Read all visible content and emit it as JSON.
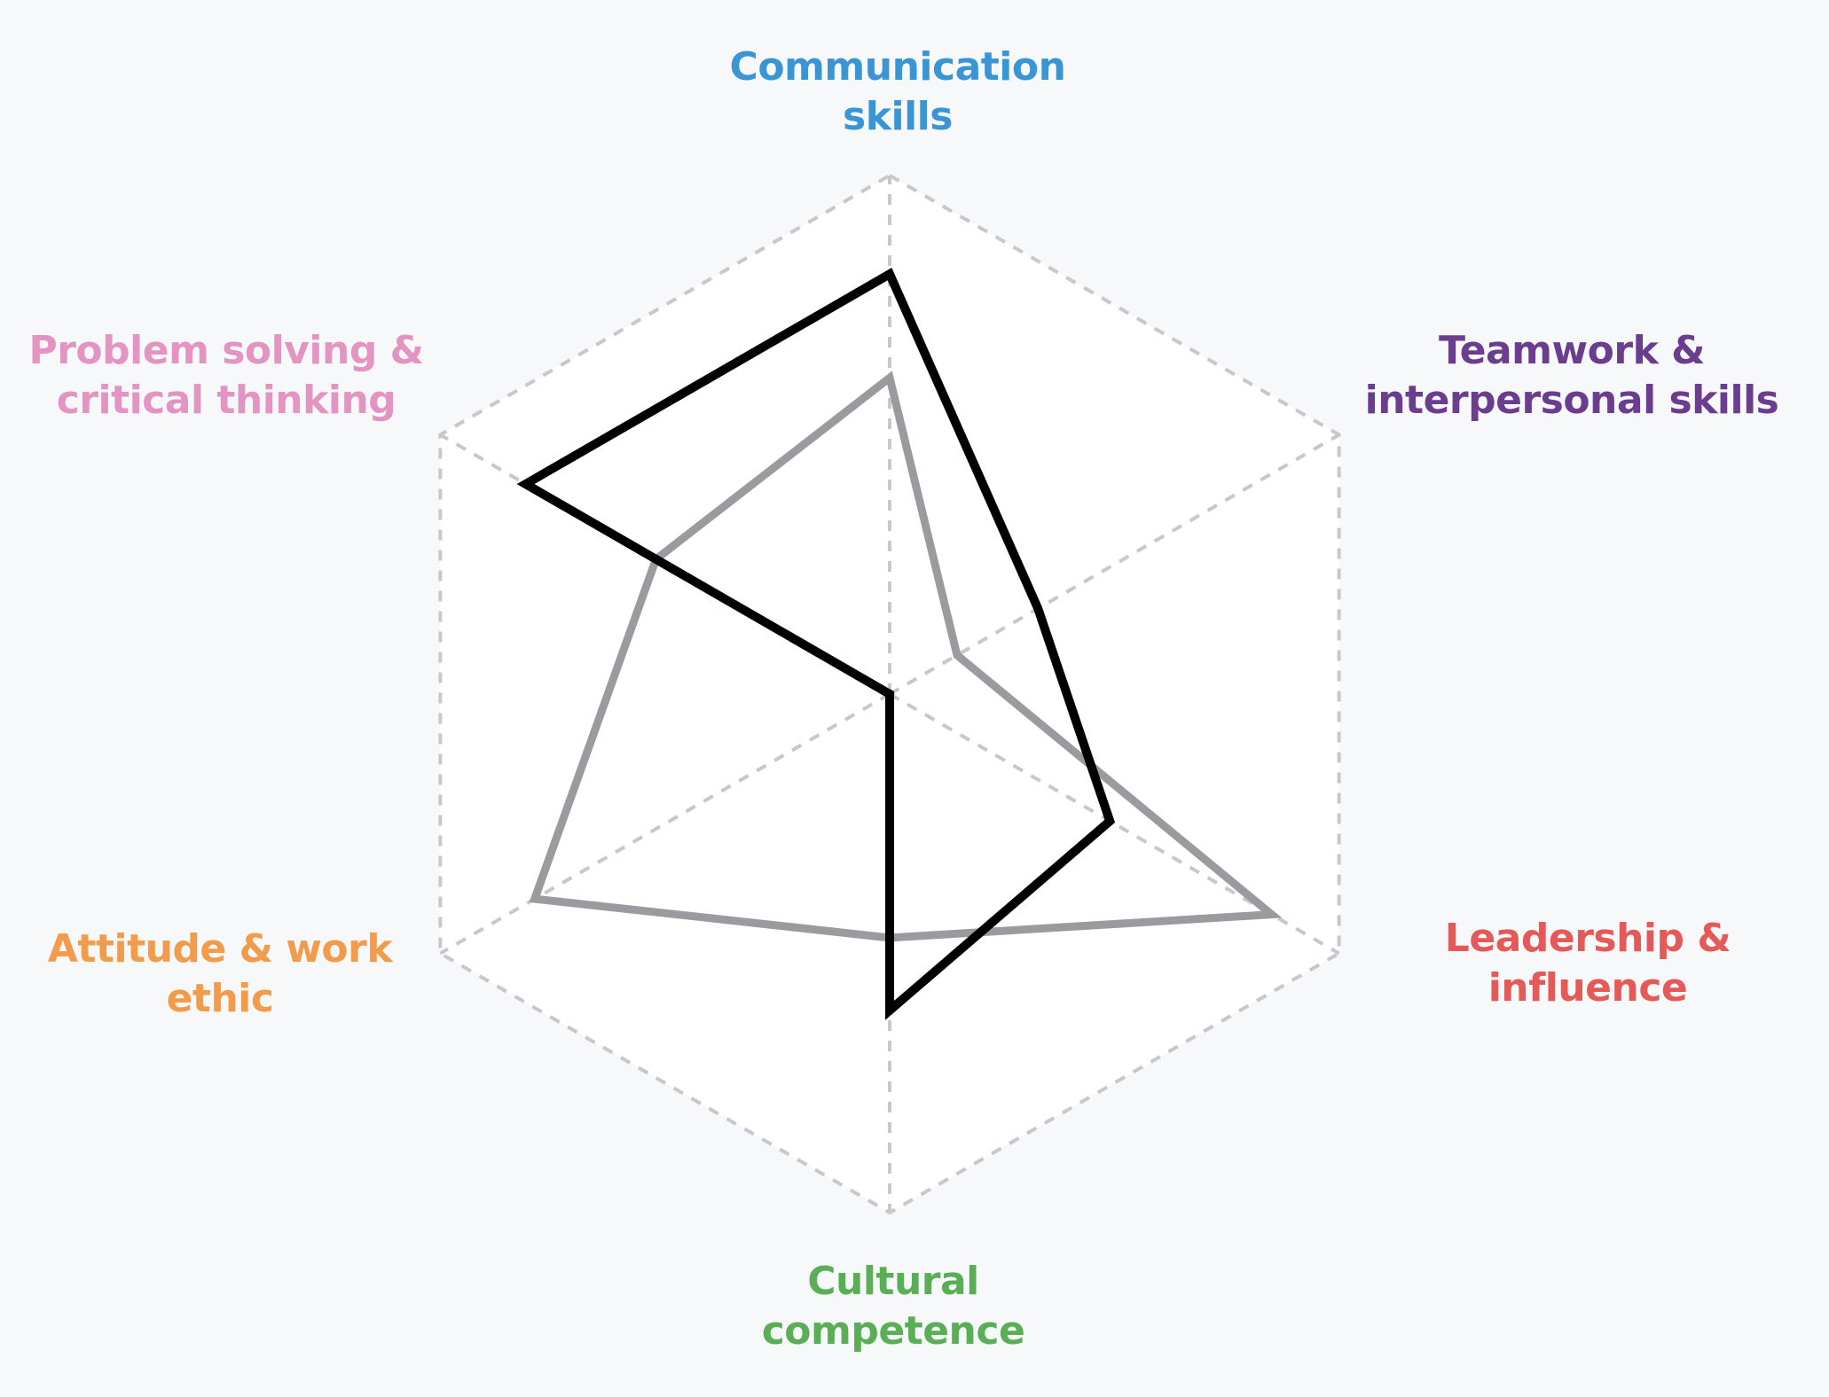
{
  "chart_data": {
    "type": "radar",
    "axes": [
      {
        "label_lines": [
          "Communication",
          "skills"
        ],
        "color": "#3a95d4"
      },
      {
        "label_lines": [
          "Teamwork &",
          "interpersonal skills"
        ],
        "color": "#6b3d8e"
      },
      {
        "label_lines": [
          "Leadership &",
          "influence"
        ],
        "color": "#e45a58"
      },
      {
        "label_lines": [
          "Cultural",
          "competence"
        ],
        "color": "#5aae55"
      },
      {
        "label_lines": [
          "Attitude & work",
          "ethic"
        ],
        "color": "#f29b4b"
      },
      {
        "label_lines": [
          "Problem solving &",
          "critical thinking"
        ],
        "color": "#e394c2"
      }
    ],
    "range": [
      0,
      1
    ],
    "grid": "dashed hexagon outline and spokes",
    "series": [
      {
        "color": "#000000",
        "values": [
          0.81,
          0.33,
          0.49,
          0.61,
          0.0,
          0.81
        ]
      },
      {
        "color": "#9b9b9f",
        "values": [
          0.61,
          0.15,
          0.85,
          0.47,
          0.79,
          0.52
        ]
      }
    ]
  }
}
